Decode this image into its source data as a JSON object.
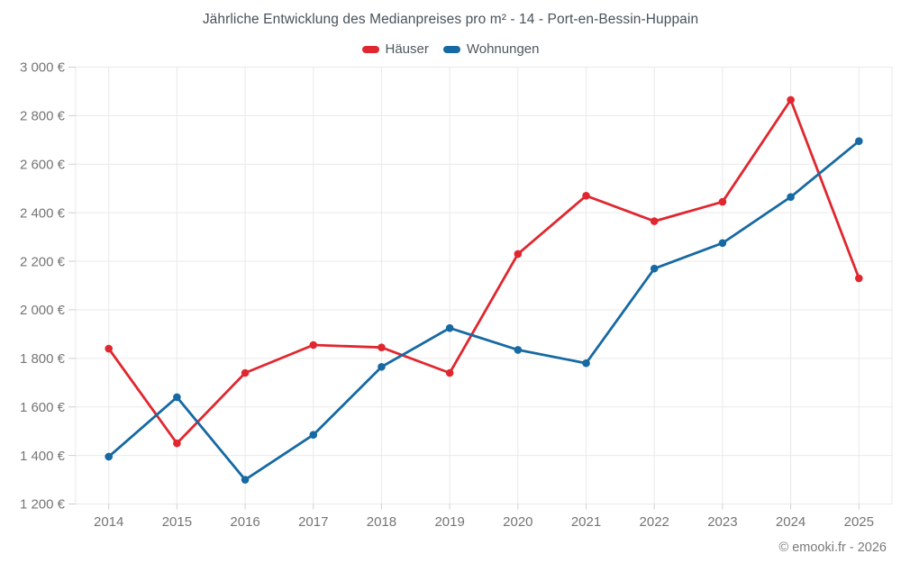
{
  "chart_data": {
    "type": "line",
    "title": "Jährliche Entwicklung des Medianpreises pro m² - 14 - Port-en-Bessin-Huppain",
    "categories": [
      "2014",
      "2015",
      "2016",
      "2017",
      "2018",
      "2019",
      "2020",
      "2021",
      "2022",
      "2023",
      "2024",
      "2025"
    ],
    "series": [
      {
        "name": "Häuser",
        "color": "#e0272f",
        "values": [
          1840,
          1450,
          1740,
          1855,
          1845,
          1740,
          2230,
          2470,
          2365,
          2445,
          2865,
          2130
        ]
      },
      {
        "name": "Wohnungen",
        "color": "#1669a2",
        "values": [
          1395,
          1640,
          1300,
          1485,
          1765,
          1925,
          1835,
          1780,
          2170,
          2275,
          2465,
          2695
        ]
      }
    ],
    "ylim": [
      1200,
      3000
    ],
    "y_ticks": [
      {
        "value": 1200,
        "label": "1 200 €"
      },
      {
        "value": 1400,
        "label": "1 400 €"
      },
      {
        "value": 1600,
        "label": "1 600 €"
      },
      {
        "value": 1800,
        "label": "1 800 €"
      },
      {
        "value": 2000,
        "label": "2 000 €"
      },
      {
        "value": 2200,
        "label": "2 200 €"
      },
      {
        "value": 2400,
        "label": "2 400 €"
      },
      {
        "value": 2600,
        "label": "2 600 €"
      },
      {
        "value": 2800,
        "label": "2 800 €"
      },
      {
        "value": 3000,
        "label": "3 000 €"
      }
    ],
    "grid": true,
    "legend_position": "top",
    "colors": {
      "grid": "#e9e9e9",
      "tick": "#cfcfcf",
      "axis_label": "#757575"
    }
  },
  "footer": {
    "text": "© emooki.fr - 2026"
  }
}
